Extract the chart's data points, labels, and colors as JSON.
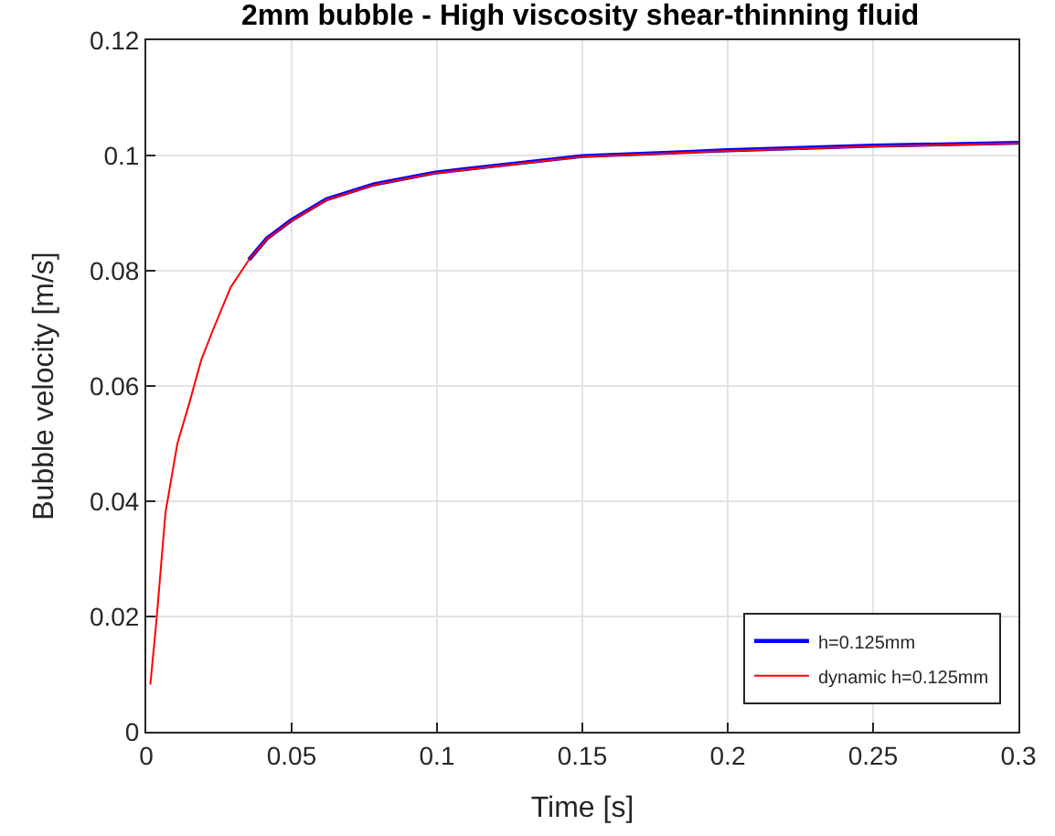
{
  "chart_data": {
    "type": "line",
    "title": "2mm bubble - High viscosity shear-thinning fluid",
    "xlabel": "Time [s]",
    "ylabel": "Bubble velocity [m/s]",
    "xlim": [
      0,
      0.3
    ],
    "ylim": [
      0,
      0.12
    ],
    "xticks": [
      0,
      0.05,
      0.1,
      0.15,
      0.2,
      0.25,
      0.3
    ],
    "yticks": [
      0,
      0.02,
      0.04,
      0.06,
      0.08,
      0.1,
      0.12
    ],
    "grid": true,
    "legend": "bottom right",
    "line_style": "solid",
    "marker": "none",
    "series": [
      {
        "name": "h=0.125mm",
        "color": "#0000ff",
        "x": [
          0.0353,
          0.0415,
          0.0497,
          0.062,
          0.0784,
          0.099,
          0.1195,
          0.15,
          0.2,
          0.25,
          0.3
        ],
        "values": [
          0.0819,
          0.0856,
          0.0887,
          0.0924,
          0.095,
          0.097,
          0.0982,
          0.0999,
          0.1009,
          0.1017,
          0.1022
        ]
      },
      {
        "name": "dynamic h=0.125mm",
        "color": "#ff0000",
        "x": [
          0.0014,
          0.0035,
          0.0066,
          0.0107,
          0.0148,
          0.0189,
          0.023,
          0.029,
          0.0353,
          0.0415,
          0.0497,
          0.062,
          0.0784,
          0.099,
          0.1195,
          0.15,
          0.2,
          0.25,
          0.3
        ],
        "values": [
          0.0082,
          0.0193,
          0.038,
          0.05,
          0.057,
          0.0645,
          0.0698,
          0.0771,
          0.0819,
          0.0855,
          0.0886,
          0.0923,
          0.0949,
          0.0969,
          0.0981,
          0.0998,
          0.1008,
          0.1016,
          0.1021
        ]
      }
    ]
  }
}
